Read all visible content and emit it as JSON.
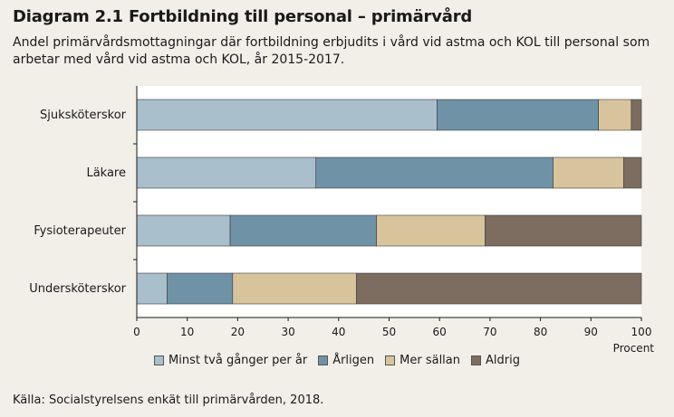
{
  "title": "Diagram 2.1 Fortbildning till personal – primärvård",
  "subtitle": "Andel primärvårdsmottagningar där fortbildning erbjudits i vård vid astma och KOL till personal som arbetar med vård vid astma och KOL, år 2015-2017.",
  "source": "Källa: Socialstyrelsens enkät till primärvården, 2018.",
  "chart_data": {
    "type": "bar",
    "orientation": "horizontal",
    "stacked": true,
    "categories": [
      "Sjuksköterskor",
      "Läkare",
      "Fysioterapeuter",
      "Undersköterskor"
    ],
    "series": [
      {
        "name": "Minst två gånger per år",
        "color": "#a9bfcc",
        "values": [
          59.5,
          35.5,
          18.5,
          6
        ]
      },
      {
        "name": "Årligen",
        "color": "#6f92a6",
        "values": [
          32,
          47,
          29,
          13
        ]
      },
      {
        "name": "Mer sällan",
        "color": "#d8c49c",
        "values": [
          6.5,
          14,
          21.5,
          24.5
        ]
      },
      {
        "name": "Aldrig",
        "color": "#7d6d60",
        "values": [
          2,
          3.5,
          31,
          56.5
        ]
      }
    ],
    "xlim": [
      0,
      100
    ],
    "xticks": [
      0,
      10,
      20,
      30,
      40,
      50,
      60,
      70,
      80,
      90,
      100
    ],
    "xlabel": "Procent",
    "legend_position": "bottom",
    "grid": false
  }
}
